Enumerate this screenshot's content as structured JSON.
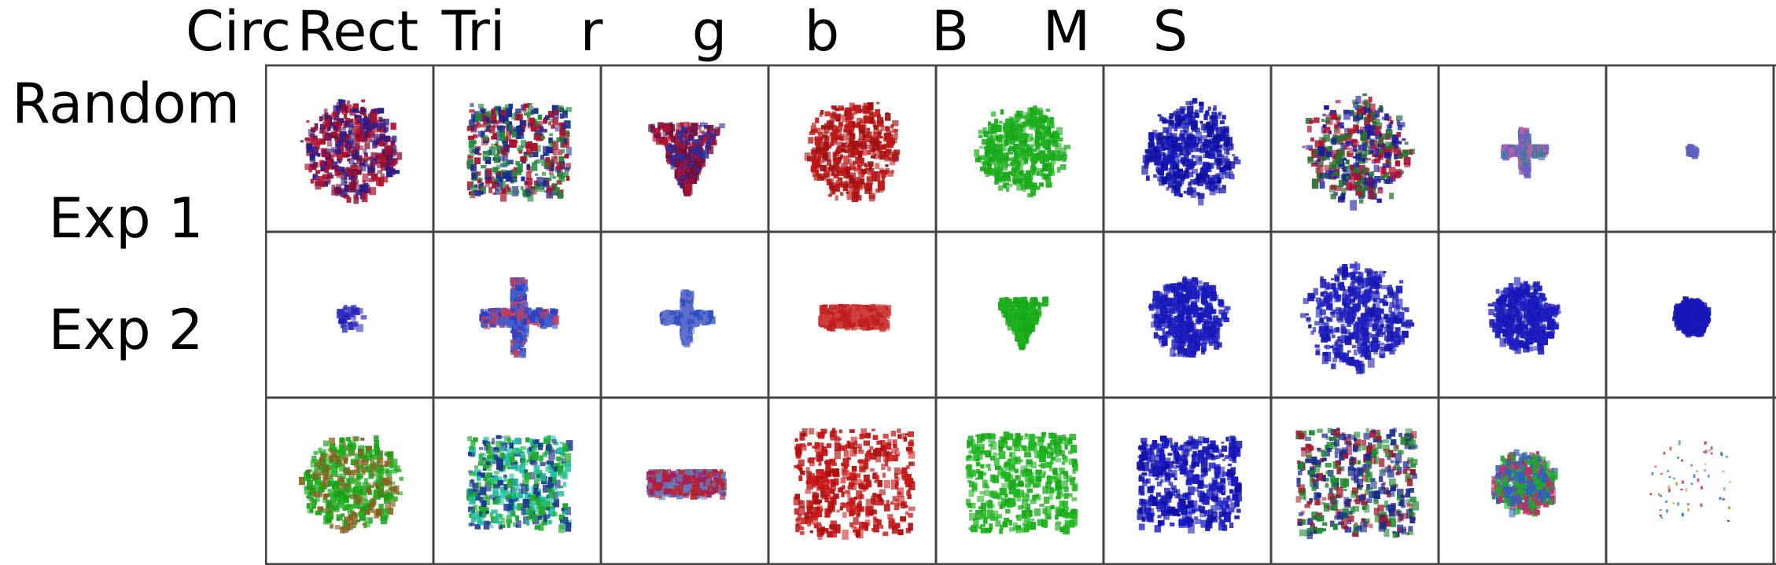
{
  "columns": [
    {
      "label": "Circ"
    },
    {
      "label": "Rect"
    },
    {
      "label": "Tri"
    },
    {
      "label": "r"
    },
    {
      "label": "g"
    },
    {
      "label": "b"
    },
    {
      "label": "B"
    },
    {
      "label": "M"
    },
    {
      "label": "S"
    }
  ],
  "rows": [
    {
      "label": "Random",
      "cells": [
        {
          "colors": [
            "#b0102a",
            "#2a1c8c",
            "#7a0f3a"
          ],
          "shape": "blob",
          "size": 0.55
        },
        {
          "colors": [
            "#a8122a",
            "#1a2a8c",
            "#1f8a3a"
          ],
          "shape": "rect",
          "size": 0.6
        },
        {
          "colors": [
            "#b0122a",
            "#2a2ca0",
            "#701040"
          ],
          "shape": "triangle",
          "size": 0.45
        },
        {
          "colors": [
            "#c01818",
            "#a01010"
          ],
          "shape": "blob",
          "size": 0.55
        },
        {
          "colors": [
            "#1fb01f",
            "#18a818"
          ],
          "shape": "blob",
          "size": 0.5
        },
        {
          "colors": [
            "#1818b8",
            "#1010a0"
          ],
          "shape": "blob",
          "size": 0.55
        },
        {
          "colors": [
            "#b01030",
            "#1a1aa0",
            "#2a7030"
          ],
          "shape": "blob",
          "size": 0.6
        },
        {
          "colors": [
            "#7060c0",
            "#c060a0",
            "#3080a0"
          ],
          "shape": "cross",
          "size": 0.25
        },
        {
          "colors": [
            "#6060c0"
          ],
          "shape": "dot",
          "size": 0.05
        }
      ]
    },
    {
      "label": "Exp 1",
      "cells": [
        {
          "colors": [
            "#2020b8",
            "#3030c0"
          ],
          "shape": "dot",
          "size": 0.15
        },
        {
          "colors": [
            "#3040c0",
            "#4060d0",
            "#c04060"
          ],
          "shape": "cross",
          "size": 0.45
        },
        {
          "colors": [
            "#3050c0",
            "#6070d0"
          ],
          "shape": "cross",
          "size": 0.3
        },
        {
          "colors": [
            "#c02020",
            "#d04040"
          ],
          "shape": "streak",
          "size": 0.4
        },
        {
          "colors": [
            "#1fb01f",
            "#18a818"
          ],
          "shape": "triangle",
          "size": 0.3
        },
        {
          "colors": [
            "#1818b8",
            "#2020c0"
          ],
          "shape": "blob",
          "size": 0.45
        },
        {
          "colors": [
            "#1818b0",
            "#2020c0"
          ],
          "shape": "blob",
          "size": 0.6
        },
        {
          "colors": [
            "#1818b8",
            "#2020c0"
          ],
          "shape": "blob",
          "size": 0.4
        },
        {
          "colors": [
            "#1818b8"
          ],
          "shape": "blob",
          "size": 0.2
        }
      ]
    },
    {
      "label": "Exp 2",
      "cells": [
        {
          "colors": [
            "#20b020",
            "#18a018",
            "#8a6020"
          ],
          "shape": "blob",
          "size": 0.55
        },
        {
          "colors": [
            "#20a830",
            "#1a3a8c",
            "#20c0a0"
          ],
          "shape": "rect",
          "size": 0.6
        },
        {
          "colors": [
            "#c02020",
            "#a02060",
            "#6080c0"
          ],
          "shape": "streak",
          "size": 0.45
        },
        {
          "colors": [
            "#c81818",
            "#b01010"
          ],
          "shape": "rect",
          "size": 0.7
        },
        {
          "colors": [
            "#20b820",
            "#18a818"
          ],
          "shape": "rect",
          "size": 0.65
        },
        {
          "colors": [
            "#1818c0",
            "#1010a8"
          ],
          "shape": "rect",
          "size": 0.6
        },
        {
          "colors": [
            "#1a2a8c",
            "#208a30",
            "#a01a30"
          ],
          "shape": "rect",
          "size": 0.7
        },
        {
          "colors": [
            "#20a830",
            "#3060c0",
            "#c03060"
          ],
          "shape": "blob",
          "size": 0.35
        },
        {
          "colors": [
            "#c0a030",
            "#3080c0",
            "#c03060"
          ],
          "shape": "sparse",
          "size": 0.3
        }
      ]
    }
  ]
}
